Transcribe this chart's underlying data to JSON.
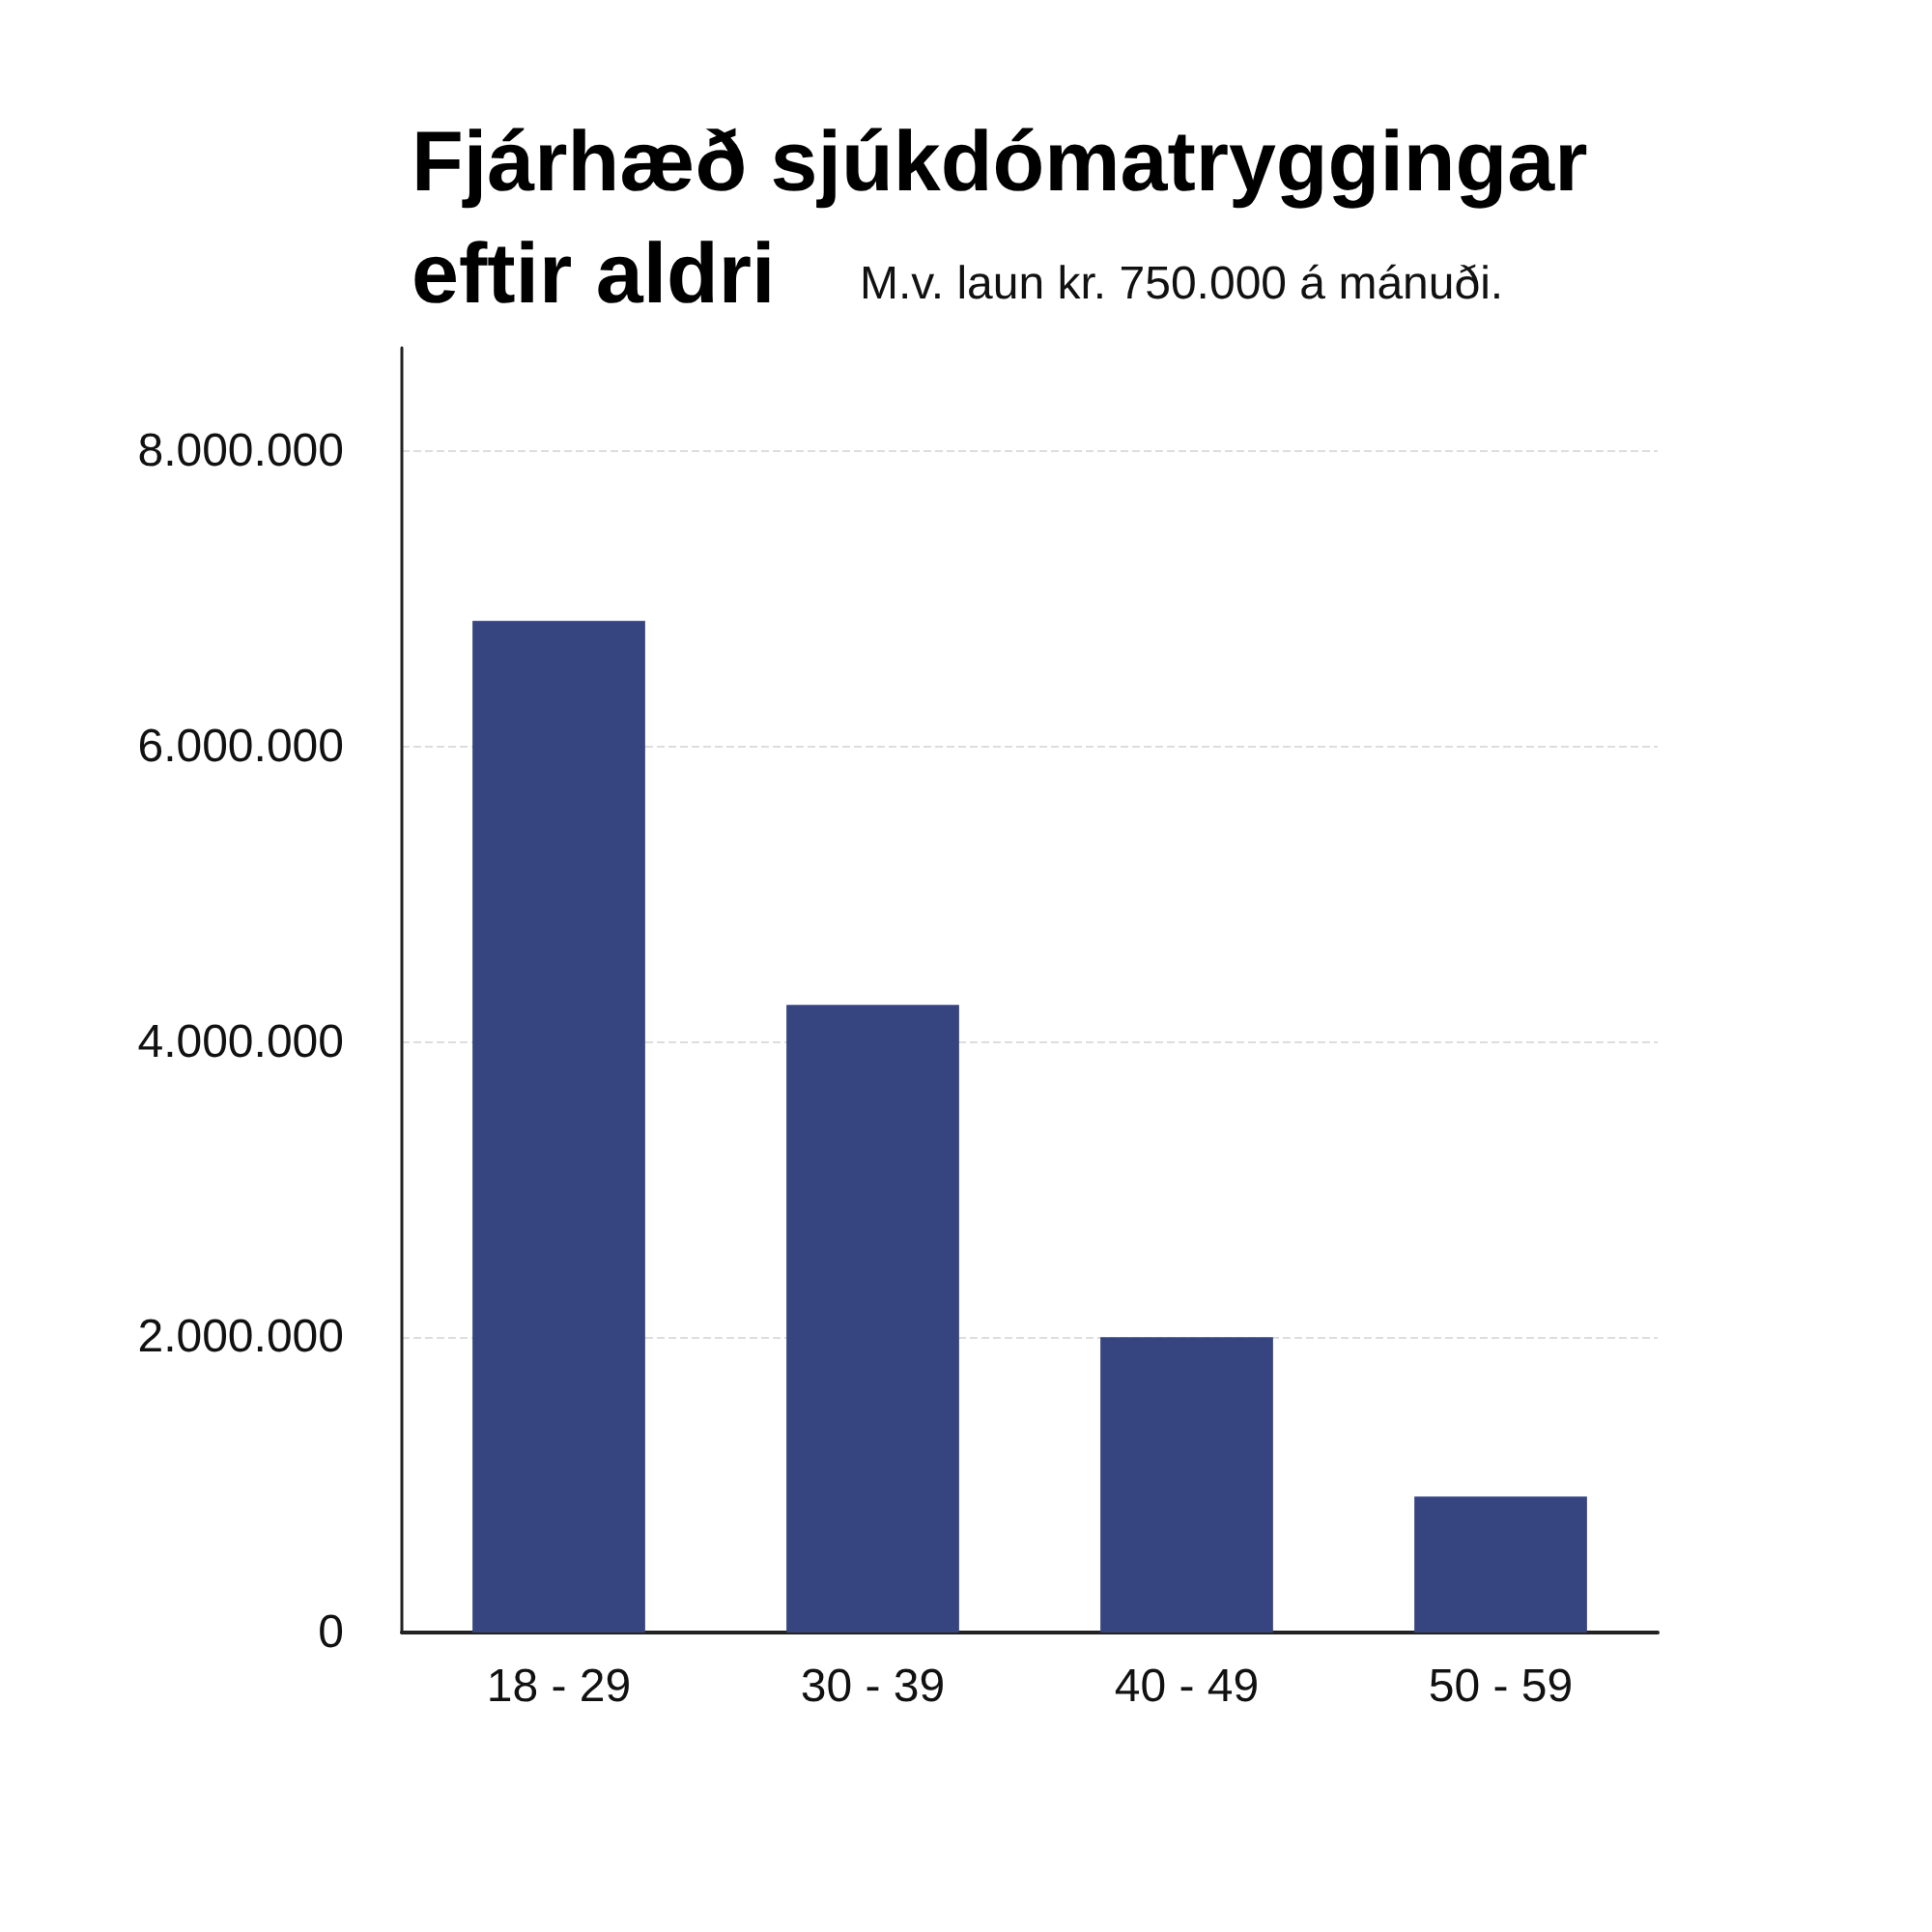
{
  "chart_data": {
    "type": "bar",
    "title": "Fjárhæð sjúkdómatryggingar\neftir aldri",
    "subtitle": "M.v. laun kr. 750.000 á mánuði.",
    "categories": [
      "18 - 29",
      "30 - 39",
      "40 - 49",
      "50 - 59"
    ],
    "values": [
      6850000,
      4250000,
      2000000,
      920000
    ],
    "color": "#36457f",
    "ylim": [
      0,
      8700000
    ],
    "yticks": [
      0,
      {
        "value": 2000000,
        "label": "2.000.000"
      },
      {
        "value": 4000000,
        "label": "4.000.000"
      },
      {
        "value": 6000000,
        "label": "6.000.000"
      },
      {
        "value": 8000000,
        "label": "8.000.000"
      }
    ],
    "grid": "y"
  }
}
